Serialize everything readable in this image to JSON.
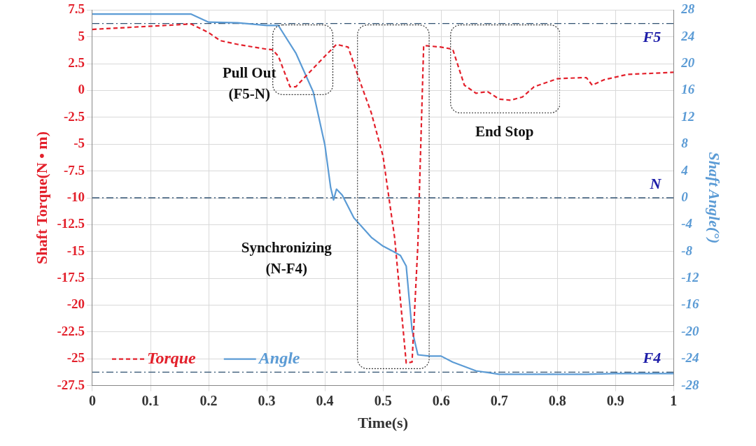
{
  "chart_data": {
    "type": "line",
    "xlabel": "Time(s)",
    "ylabel": "Shaft Torque(N • m)",
    "y2label": "Shaft Angle(°)",
    "xlim": [
      0,
      1
    ],
    "xticks": [
      0,
      0.1,
      0.2,
      0.3,
      0.4,
      0.5,
      0.6,
      0.7,
      0.8,
      0.9,
      1
    ],
    "ylim": [
      -27.5,
      7.5
    ],
    "yticks": [
      -27.5,
      -25,
      -22.5,
      -20,
      -17.5,
      -15,
      -12.5,
      -10,
      -7.5,
      -5,
      -2.5,
      0,
      2.5,
      5,
      7.5
    ],
    "y2lim": [
      -28,
      28
    ],
    "y2ticks": [
      -28,
      -24,
      -20,
      -16,
      -12,
      -8,
      -4,
      0,
      4,
      8,
      12,
      16,
      20,
      24,
      28
    ],
    "grid": true,
    "legend": "bottom left",
    "marker": "none",
    "series": [
      {
        "name": "Torque",
        "color": "#e3202b",
        "line_style": "dashed",
        "x": [
          0,
          0.17,
          0.2,
          0.22,
          0.25,
          0.3,
          0.31,
          0.32,
          0.34,
          0.35,
          0.37,
          0.4,
          0.42,
          0.44,
          0.46,
          0.48,
          0.5,
          0.52,
          0.54,
          0.55,
          0.56,
          0.57,
          0.6,
          0.62,
          0.64,
          0.66,
          0.68,
          0.7,
          0.72,
          0.74,
          0.76,
          0.8,
          0.84,
          0.85,
          0.86,
          0.88,
          0.92,
          1
        ],
        "values": [
          5.7,
          6.2,
          5.4,
          4.65,
          4.3,
          3.85,
          3.8,
          3.2,
          0.35,
          0.35,
          1.5,
          3.2,
          4.3,
          4.05,
          0.9,
          -2.1,
          -6.1,
          -13.7,
          -25.4,
          -25.3,
          -14.4,
          4.2,
          4.05,
          3.85,
          0.5,
          -0.25,
          -0.1,
          -0.8,
          -0.9,
          -0.6,
          0.35,
          1.1,
          1.2,
          1.2,
          0.5,
          1.0,
          1.5,
          1.7
        ]
      },
      {
        "name": "Angle",
        "color": "#5b9bd5",
        "line_style": "solid",
        "axis": "y2",
        "x": [
          0,
          0.17,
          0.2,
          0.25,
          0.3,
          0.32,
          0.35,
          0.38,
          0.4,
          0.41,
          0.415,
          0.42,
          0.43,
          0.45,
          0.48,
          0.5,
          0.52,
          0.53,
          0.54,
          0.55,
          0.56,
          0.58,
          0.6,
          0.62,
          0.66,
          0.7,
          0.85,
          0.9,
          1
        ],
        "values": [
          27.4,
          27.4,
          26.2,
          26.1,
          25.7,
          25.7,
          21.6,
          15.8,
          7.9,
          1.5,
          -0.3,
          1.3,
          0.4,
          -3,
          -5.9,
          -7.2,
          -8.1,
          -8.6,
          -10.2,
          -19.7,
          -23.4,
          -23.6,
          -23.6,
          -24.5,
          -25.8,
          -26.3,
          -26.3,
          -26.2,
          -26.2
        ]
      }
    ],
    "ref_lines": [
      {
        "axis": "y2",
        "value": 26,
        "label": "F5",
        "color": "#2f5070",
        "line_style": "dashdot"
      },
      {
        "axis": "y2",
        "value": 0,
        "label": "N",
        "color": "#2f5070",
        "line_style": "dashdot"
      },
      {
        "axis": "y2",
        "value": -26,
        "label": "F4",
        "color": "#2f5070",
        "line_style": "dashdot"
      }
    ],
    "annotations": [
      "Pull Out\n(F5-N)",
      "Synchronizing\n(N-F4)",
      "End Stop"
    ]
  }
}
